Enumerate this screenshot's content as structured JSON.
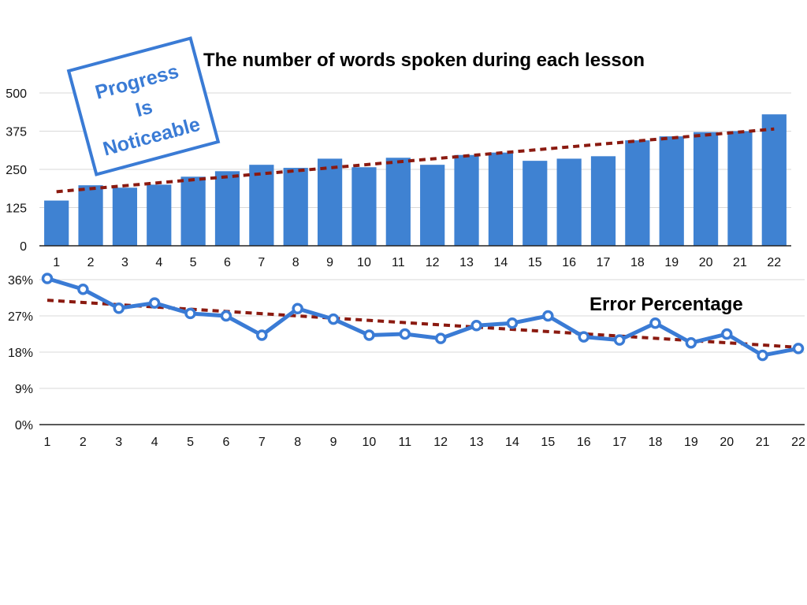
{
  "colors": {
    "bar": "#3f82d2",
    "line": "#3a7bd5",
    "trend": "#8b1a10",
    "grid": "#d9d9d9",
    "axis": "#222222",
    "stamp": "#3a7bd5"
  },
  "stamp": {
    "lines": [
      "Progress",
      "Is",
      "Noticeable"
    ]
  },
  "chart_data": [
    {
      "type": "bar",
      "title": "The number of words spoken during each lesson",
      "categories": [
        "1",
        "2",
        "3",
        "4",
        "5",
        "6",
        "7",
        "8",
        "9",
        "10",
        "11",
        "12",
        "13",
        "14",
        "15",
        "16",
        "17",
        "18",
        "19",
        "20",
        "21",
        "22"
      ],
      "series": [
        {
          "values": [
            148,
            198,
            190,
            200,
            226,
            244,
            265,
            255,
            285,
            257,
            288,
            265,
            297,
            305,
            278,
            285,
            293,
            345,
            358,
            372,
            375,
            430
          ]
        }
      ],
      "trendline": {
        "style": "dashed",
        "from": 177,
        "to": 382
      },
      "ylim": [
        0,
        500
      ],
      "yticks": [
        0,
        125,
        250,
        375,
        500
      ],
      "ytick_labels": [
        "0",
        "125",
        "250",
        "375",
        "500"
      ],
      "grid": true,
      "legend": "none"
    },
    {
      "type": "line",
      "title": "Error Percentage",
      "categories": [
        "1",
        "2",
        "3",
        "4",
        "5",
        "6",
        "7",
        "8",
        "9",
        "10",
        "11",
        "12",
        "13",
        "14",
        "15",
        "16",
        "17",
        "18",
        "19",
        "20",
        "21",
        "22"
      ],
      "series": [
        {
          "values": [
            36.3,
            33.6,
            28.9,
            30.2,
            27.6,
            27.0,
            22.2,
            28.8,
            26.2,
            22.2,
            22.5,
            21.4,
            24.6,
            25.2,
            27.0,
            21.8,
            21.0,
            25.2,
            20.3,
            22.5,
            17.2,
            18.9
          ]
        }
      ],
      "trendline": {
        "style": "dashed",
        "from": 30.9,
        "to": 19.2
      },
      "ylim": [
        0,
        36
      ],
      "yticks": [
        0,
        9,
        18,
        27,
        36
      ],
      "ytick_labels": [
        "0%",
        "9%",
        "18%",
        "27%",
        "36%"
      ],
      "grid": true,
      "markers": "hollow-circle",
      "legend": "none"
    }
  ]
}
